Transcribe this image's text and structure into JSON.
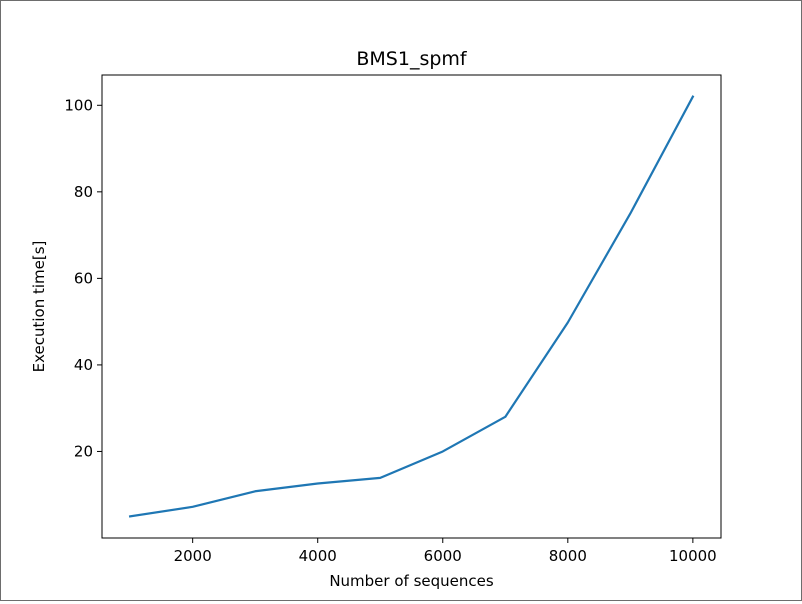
{
  "chart_data": {
    "type": "line",
    "title": "BMS1_spmf",
    "xlabel": "Number of sequences",
    "ylabel": "Execution time[s]",
    "xlim": [
      550,
      10450
    ],
    "ylim": [
      0,
      107
    ],
    "xticks": [
      2000,
      4000,
      6000,
      8000,
      10000
    ],
    "yticks": [
      20,
      40,
      60,
      80,
      100
    ],
    "grid": false,
    "series": [
      {
        "color": "#1f77b4",
        "x": [
          1000,
          2000,
          3000,
          4000,
          5000,
          6000,
          7000,
          8000,
          9000,
          10000
        ],
        "y": [
          5.0,
          7.2,
          10.8,
          12.6,
          13.9,
          20.0,
          28.0,
          49.8,
          75.0,
          102.0
        ]
      }
    ]
  }
}
